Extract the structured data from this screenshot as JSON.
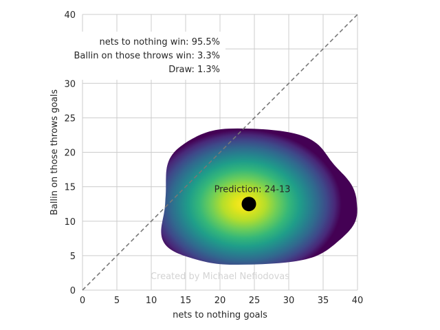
{
  "chart_data": {
    "type": "heatmap",
    "xlabel": "nets to nothing goals",
    "ylabel": "Ballin on those throws goals",
    "xlim": [
      0,
      40
    ],
    "ylim": [
      0,
      40
    ],
    "xticks": [
      0,
      5,
      10,
      15,
      20,
      25,
      30,
      35,
      40
    ],
    "yticks": [
      0,
      5,
      10,
      15,
      20,
      25,
      30,
      35,
      40
    ],
    "grid": true,
    "colormap": "viridis",
    "density_center": [
      23.5,
      12.5
    ],
    "density_extent": {
      "x_min": 11.3,
      "x_max": 39.0,
      "y_min": 3.5,
      "y_max": 23.2
    },
    "diagonal_line": {
      "from": [
        0,
        0
      ],
      "to": [
        40,
        40
      ],
      "color": "#777777",
      "style": "dashed"
    },
    "probabilities": [
      {
        "label": "nets to nothing win: 95.5%"
      },
      {
        "label": "Ballin on those throws win: 3.3%"
      },
      {
        "label": "Draw: 1.3%"
      }
    ],
    "prediction": {
      "label": "Prediction: 24-13",
      "x": 24.2,
      "y": 12.5,
      "color": "#000000"
    },
    "watermark": "Created by Michael Nefiodovas"
  }
}
